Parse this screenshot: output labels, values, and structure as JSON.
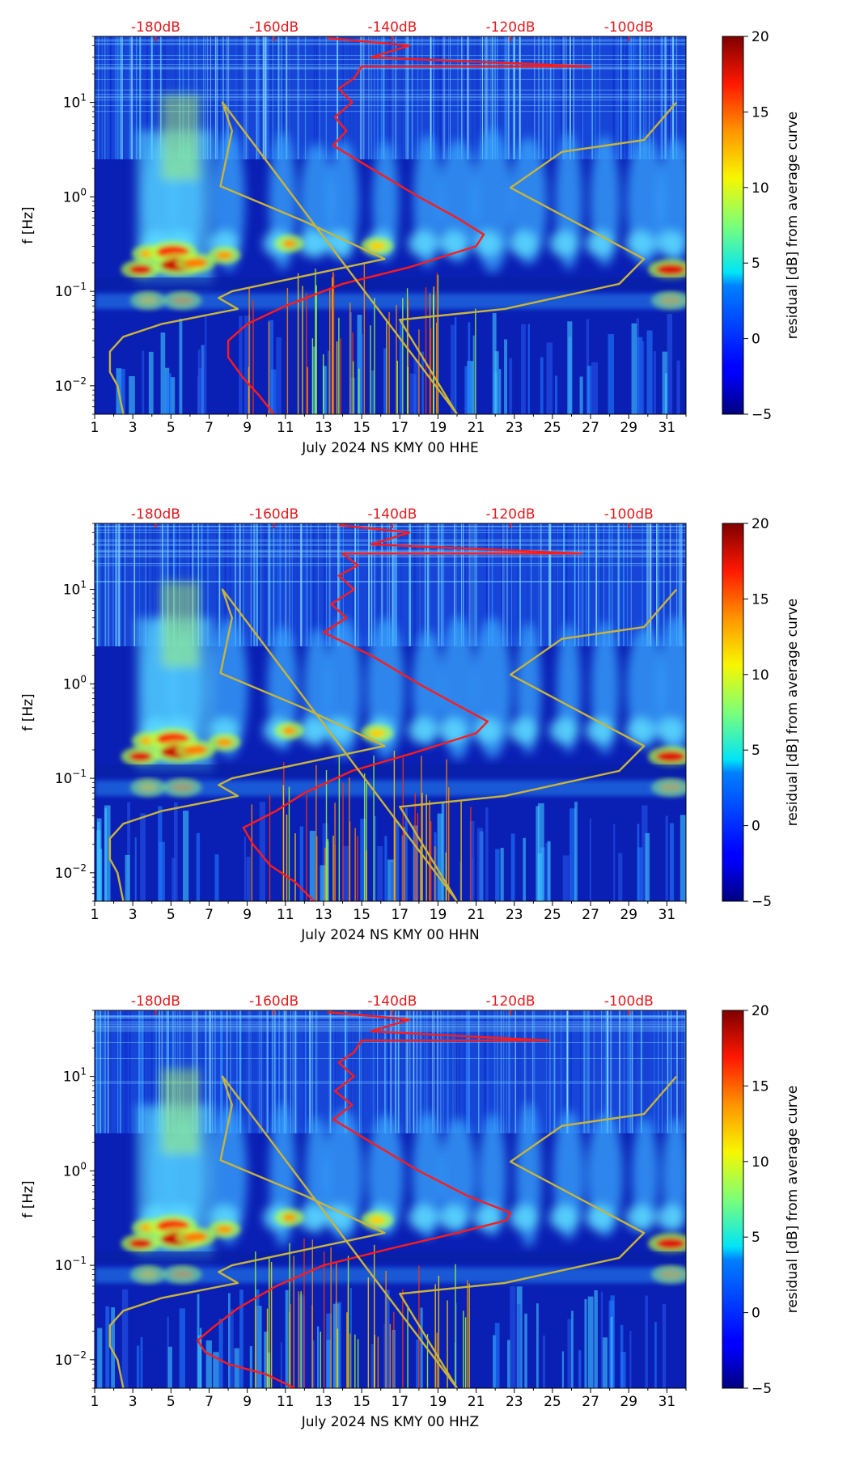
{
  "figure": {
    "colors": {
      "accent_red": "#e31a1c",
      "curve_red": "#ff1a1a",
      "curve_yellow": "#c8b43c",
      "text": "#000000"
    }
  },
  "chart_data": [
    {
      "type": "heatmap",
      "title": "",
      "xlabel": "July 2024 NS KMY 00 HHE",
      "ylabel": "f [Hz]",
      "x_ticks": [
        1,
        3,
        5,
        7,
        9,
        11,
        13,
        15,
        17,
        19,
        21,
        23,
        25,
        27,
        29,
        31
      ],
      "xlim": [
        1,
        32
      ],
      "y_scale": "log",
      "ylim": [
        0.005,
        50
      ],
      "y_ticks": [
        {
          "value": 0.01,
          "base": "10",
          "exp": "−2"
        },
        {
          "value": 0.1,
          "base": "10",
          "exp": "−1"
        },
        {
          "value": 1,
          "base": "10",
          "exp": "0"
        },
        {
          "value": 10,
          "base": "10",
          "exp": "1"
        }
      ],
      "top_axis_labels": [
        {
          "day": 4.2,
          "label": "-180dB"
        },
        {
          "day": 10.4,
          "label": "-160dB"
        },
        {
          "day": 16.6,
          "label": "-140dB"
        },
        {
          "day": 22.8,
          "label": "-120dB"
        },
        {
          "day": 29.0,
          "label": "-100dB"
        }
      ],
      "colorbar": {
        "label": "residual [dB] from average curve",
        "range": [
          -5,
          20
        ],
        "ticks": [
          20,
          15,
          10,
          5,
          0,
          -5
        ],
        "tick_labels": [
          "20",
          "15",
          "10",
          "5",
          "0",
          "−5"
        ],
        "colormap": "jet"
      },
      "series": [
        {
          "name": "average PSD (red, top dB axis)",
          "color": "#ff1a1a",
          "points": [
            [
              10.4,
              0.005
            ],
            [
              9.6,
              0.008
            ],
            [
              8.8,
              0.012
            ],
            [
              8.0,
              0.02
            ],
            [
              8.0,
              0.03
            ],
            [
              9.0,
              0.045
            ],
            [
              11.0,
              0.07
            ],
            [
              14.0,
              0.12
            ],
            [
              17.5,
              0.18
            ],
            [
              21.0,
              0.3
            ],
            [
              21.4,
              0.4
            ],
            [
              20.0,
              0.6
            ],
            [
              18.0,
              1.0
            ],
            [
              15.5,
              2.0
            ],
            [
              13.5,
              3.5
            ],
            [
              14.2,
              5
            ],
            [
              13.6,
              7
            ],
            [
              14.5,
              10
            ],
            [
              13.8,
              14
            ],
            [
              14.6,
              18
            ],
            [
              15.0,
              24
            ],
            [
              27.0,
              24
            ],
            [
              15.5,
              30
            ],
            [
              17.5,
              40
            ],
            [
              13.2,
              48
            ]
          ]
        },
        {
          "name": "noise model (yellow)",
          "color": "#c8b43c",
          "points": [
            [
              2.5,
              0.005
            ],
            [
              2.2,
              0.01
            ],
            [
              1.8,
              0.014
            ],
            [
              1.8,
              0.023
            ],
            [
              2.5,
              0.033
            ],
            [
              4.5,
              0.045
            ],
            [
              8.5,
              0.065
            ],
            [
              7.5,
              0.085
            ],
            [
              8.2,
              0.1
            ],
            [
              16.2,
              0.22
            ],
            [
              12,
              0.55
            ],
            [
              7.6,
              1.3
            ],
            [
              8.2,
              5
            ],
            [
              7.7,
              10
            ],
            [
              20,
              0.005
            ],
            [
              17,
              0.05
            ],
            [
              22.5,
              0.065
            ],
            [
              28.5,
              0.12
            ],
            [
              29.8,
              0.22
            ],
            [
              22.8,
              1.25
            ],
            [
              25.5,
              3
            ],
            [
              29.8,
              4
            ],
            [
              31.5,
              10
            ]
          ]
        }
      ]
    },
    {
      "type": "heatmap",
      "title": "",
      "xlabel": "July 2024 NS KMY 00 HHN",
      "ylabel": "f [Hz]",
      "x_ticks": [
        1,
        3,
        5,
        7,
        9,
        11,
        13,
        15,
        17,
        19,
        21,
        23,
        25,
        27,
        29,
        31
      ],
      "xlim": [
        1,
        32
      ],
      "y_scale": "log",
      "ylim": [
        0.005,
        50
      ],
      "y_ticks": [
        {
          "value": 0.01,
          "base": "10",
          "exp": "−2"
        },
        {
          "value": 0.1,
          "base": "10",
          "exp": "−1"
        },
        {
          "value": 1,
          "base": "10",
          "exp": "0"
        },
        {
          "value": 10,
          "base": "10",
          "exp": "1"
        }
      ],
      "top_axis_labels": [
        {
          "day": 4.2,
          "label": "-180dB"
        },
        {
          "day": 10.4,
          "label": "-160dB"
        },
        {
          "day": 16.6,
          "label": "-140dB"
        },
        {
          "day": 22.8,
          "label": "-120dB"
        },
        {
          "day": 29.0,
          "label": "-100dB"
        }
      ],
      "colorbar": {
        "label": "residual [dB] from average curve",
        "range": [
          -5,
          20
        ],
        "ticks": [
          20,
          15,
          10,
          5,
          0,
          -5
        ],
        "tick_labels": [
          "20",
          "15",
          "10",
          "5",
          "0",
          "−5"
        ],
        "colormap": "jet"
      },
      "series": [
        {
          "name": "average PSD (red, top dB axis)",
          "color": "#ff1a1a",
          "points": [
            [
              12.5,
              0.005
            ],
            [
              11.5,
              0.008
            ],
            [
              10.2,
              0.012
            ],
            [
              9.3,
              0.02
            ],
            [
              8.8,
              0.03
            ],
            [
              10.5,
              0.045
            ],
            [
              12.0,
              0.07
            ],
            [
              14.5,
              0.12
            ],
            [
              17.5,
              0.18
            ],
            [
              21.0,
              0.3
            ],
            [
              21.6,
              0.4
            ],
            [
              20.0,
              0.6
            ],
            [
              18.0,
              1.0
            ],
            [
              15.5,
              2.0
            ],
            [
              13.0,
              3.5
            ],
            [
              14.2,
              5
            ],
            [
              13.4,
              7
            ],
            [
              14.6,
              10
            ],
            [
              13.8,
              14
            ],
            [
              14.8,
              18
            ],
            [
              14.0,
              24
            ],
            [
              26.5,
              24
            ],
            [
              15.5,
              30
            ],
            [
              17.5,
              40
            ],
            [
              13.8,
              48
            ]
          ]
        },
        {
          "name": "noise model (yellow)",
          "color": "#c8b43c",
          "points": [
            [
              2.5,
              0.005
            ],
            [
              2.2,
              0.01
            ],
            [
              1.8,
              0.014
            ],
            [
              1.8,
              0.023
            ],
            [
              2.5,
              0.033
            ],
            [
              4.5,
              0.045
            ],
            [
              8.5,
              0.065
            ],
            [
              7.5,
              0.085
            ],
            [
              8.2,
              0.1
            ],
            [
              16.2,
              0.22
            ],
            [
              12,
              0.55
            ],
            [
              7.6,
              1.3
            ],
            [
              8.2,
              5
            ],
            [
              7.7,
              10
            ],
            [
              20,
              0.005
            ],
            [
              17,
              0.05
            ],
            [
              22.5,
              0.065
            ],
            [
              28.5,
              0.12
            ],
            [
              29.8,
              0.22
            ],
            [
              22.8,
              1.25
            ],
            [
              25.5,
              3
            ],
            [
              29.8,
              4
            ],
            [
              31.5,
              10
            ]
          ]
        }
      ]
    },
    {
      "type": "heatmap",
      "title": "",
      "xlabel": "July 2024 NS KMY 00 HHZ",
      "ylabel": "f [Hz]",
      "x_ticks": [
        1,
        3,
        5,
        7,
        9,
        11,
        13,
        15,
        17,
        19,
        21,
        23,
        25,
        27,
        29,
        31
      ],
      "xlim": [
        1,
        32
      ],
      "y_scale": "log",
      "ylim": [
        0.005,
        50
      ],
      "y_ticks": [
        {
          "value": 0.01,
          "base": "10",
          "exp": "−2"
        },
        {
          "value": 0.1,
          "base": "10",
          "exp": "−1"
        },
        {
          "value": 1,
          "base": "10",
          "exp": "0"
        },
        {
          "value": 10,
          "base": "10",
          "exp": "1"
        }
      ],
      "top_axis_labels": [
        {
          "day": 4.2,
          "label": "-180dB"
        },
        {
          "day": 10.4,
          "label": "-160dB"
        },
        {
          "day": 16.6,
          "label": "-140dB"
        },
        {
          "day": 22.8,
          "label": "-120dB"
        },
        {
          "day": 29.0,
          "label": "-100dB"
        }
      ],
      "colorbar": {
        "label": "residual [dB] from average curve",
        "range": [
          -5,
          20
        ],
        "ticks": [
          20,
          15,
          10,
          5,
          0,
          -5
        ],
        "tick_labels": [
          "20",
          "15",
          "10",
          "5",
          "0",
          "−5"
        ],
        "colormap": "jet"
      },
      "series": [
        {
          "name": "average PSD (red, top dB axis)",
          "color": "#ff1a1a",
          "points": [
            [
              11.5,
              0.005
            ],
            [
              10.0,
              0.007
            ],
            [
              8.0,
              0.009
            ],
            [
              6.8,
              0.012
            ],
            [
              6.4,
              0.016
            ],
            [
              7.2,
              0.022
            ],
            [
              8.5,
              0.035
            ],
            [
              10.5,
              0.06
            ],
            [
              13.0,
              0.1
            ],
            [
              16.5,
              0.15
            ],
            [
              20.0,
              0.22
            ],
            [
              22.6,
              0.3
            ],
            [
              22.8,
              0.36
            ],
            [
              20.5,
              0.55
            ],
            [
              18.0,
              1.0
            ],
            [
              15.5,
              2.0
            ],
            [
              13.5,
              3.5
            ],
            [
              14.5,
              5
            ],
            [
              13.6,
              7
            ],
            [
              14.6,
              10
            ],
            [
              13.8,
              14
            ],
            [
              14.6,
              18
            ],
            [
              15.0,
              24
            ],
            [
              24.8,
              24
            ],
            [
              15.5,
              30
            ],
            [
              17.5,
              40
            ],
            [
              13.2,
              48
            ]
          ]
        },
        {
          "name": "noise model (yellow)",
          "color": "#c8b43c",
          "points": [
            [
              2.5,
              0.005
            ],
            [
              2.2,
              0.01
            ],
            [
              1.8,
              0.014
            ],
            [
              1.8,
              0.023
            ],
            [
              2.5,
              0.033
            ],
            [
              4.5,
              0.045
            ],
            [
              8.5,
              0.065
            ],
            [
              7.5,
              0.085
            ],
            [
              8.2,
              0.1
            ],
            [
              16.2,
              0.22
            ],
            [
              12,
              0.55
            ],
            [
              7.6,
              1.3
            ],
            [
              8.2,
              5
            ],
            [
              7.7,
              10
            ],
            [
              20,
              0.005
            ],
            [
              17,
              0.05
            ],
            [
              22.5,
              0.065
            ],
            [
              28.5,
              0.12
            ],
            [
              29.8,
              0.22
            ],
            [
              22.8,
              1.25
            ],
            [
              25.5,
              3
            ],
            [
              29.8,
              4
            ],
            [
              31.5,
              10
            ]
          ]
        }
      ]
    }
  ]
}
